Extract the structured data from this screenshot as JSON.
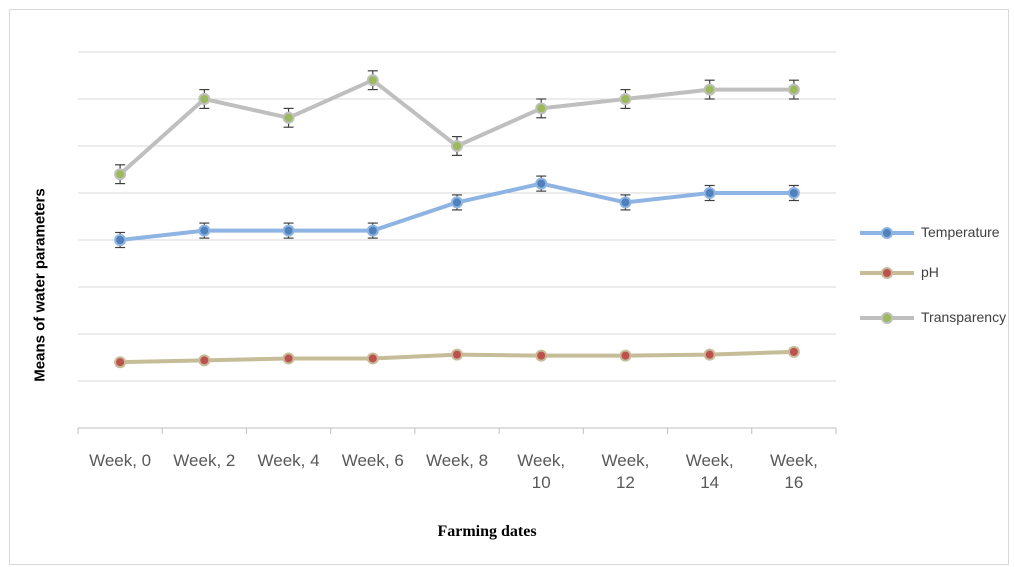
{
  "chart_data": {
    "type": "line",
    "xlabel": "Farming dates",
    "ylabel": "Means of water parameters",
    "categories": [
      "Week, 0",
      "Week, 2",
      "Week, 4",
      "Week, 6",
      "Week, 8",
      "Week, 10",
      "Week, 12",
      "Week, 14",
      "Week, 16"
    ],
    "category_lines": [
      [
        "Week, 0"
      ],
      [
        "Week, 2"
      ],
      [
        "Week, 4"
      ],
      [
        "Week, 6"
      ],
      [
        "Week, 8"
      ],
      [
        "Week,",
        "10"
      ],
      [
        "Week,",
        "12"
      ],
      [
        "Week,",
        "14"
      ],
      [
        "Week,",
        "16"
      ]
    ],
    "ylim": [
      0,
      40
    ],
    "gridlines": [
      5,
      10,
      15,
      20,
      25,
      30,
      35,
      40
    ],
    "y_tick_labels_shown": false,
    "legend_position": "right",
    "error_bars": true,
    "series": [
      {
        "name": "Temperature",
        "color": "#8eb4e3",
        "marker_fill": "#4f81bd",
        "values": [
          20,
          21,
          21,
          21,
          24,
          26,
          24,
          25,
          25
        ],
        "error": [
          0.8,
          0.8,
          0.8,
          0.8,
          0.8,
          0.8,
          0.8,
          0.8,
          0.8
        ]
      },
      {
        "name": "pH",
        "color": "#c4bd97",
        "marker_fill": "#c0504d",
        "values": [
          7.0,
          7.2,
          7.4,
          7.4,
          7.8,
          7.7,
          7.7,
          7.8,
          8.1
        ],
        "error": [
          0,
          0,
          0,
          0,
          0,
          0,
          0,
          0,
          0
        ]
      },
      {
        "name": "Transparency",
        "color": "#bfbfbf",
        "marker_fill": "#9bbb59",
        "values": [
          27,
          35,
          33,
          37,
          30,
          34,
          35,
          36,
          36
        ],
        "error": [
          1.0,
          1.0,
          1.0,
          1.0,
          1.0,
          1.0,
          1.0,
          1.0,
          1.0
        ]
      }
    ]
  }
}
